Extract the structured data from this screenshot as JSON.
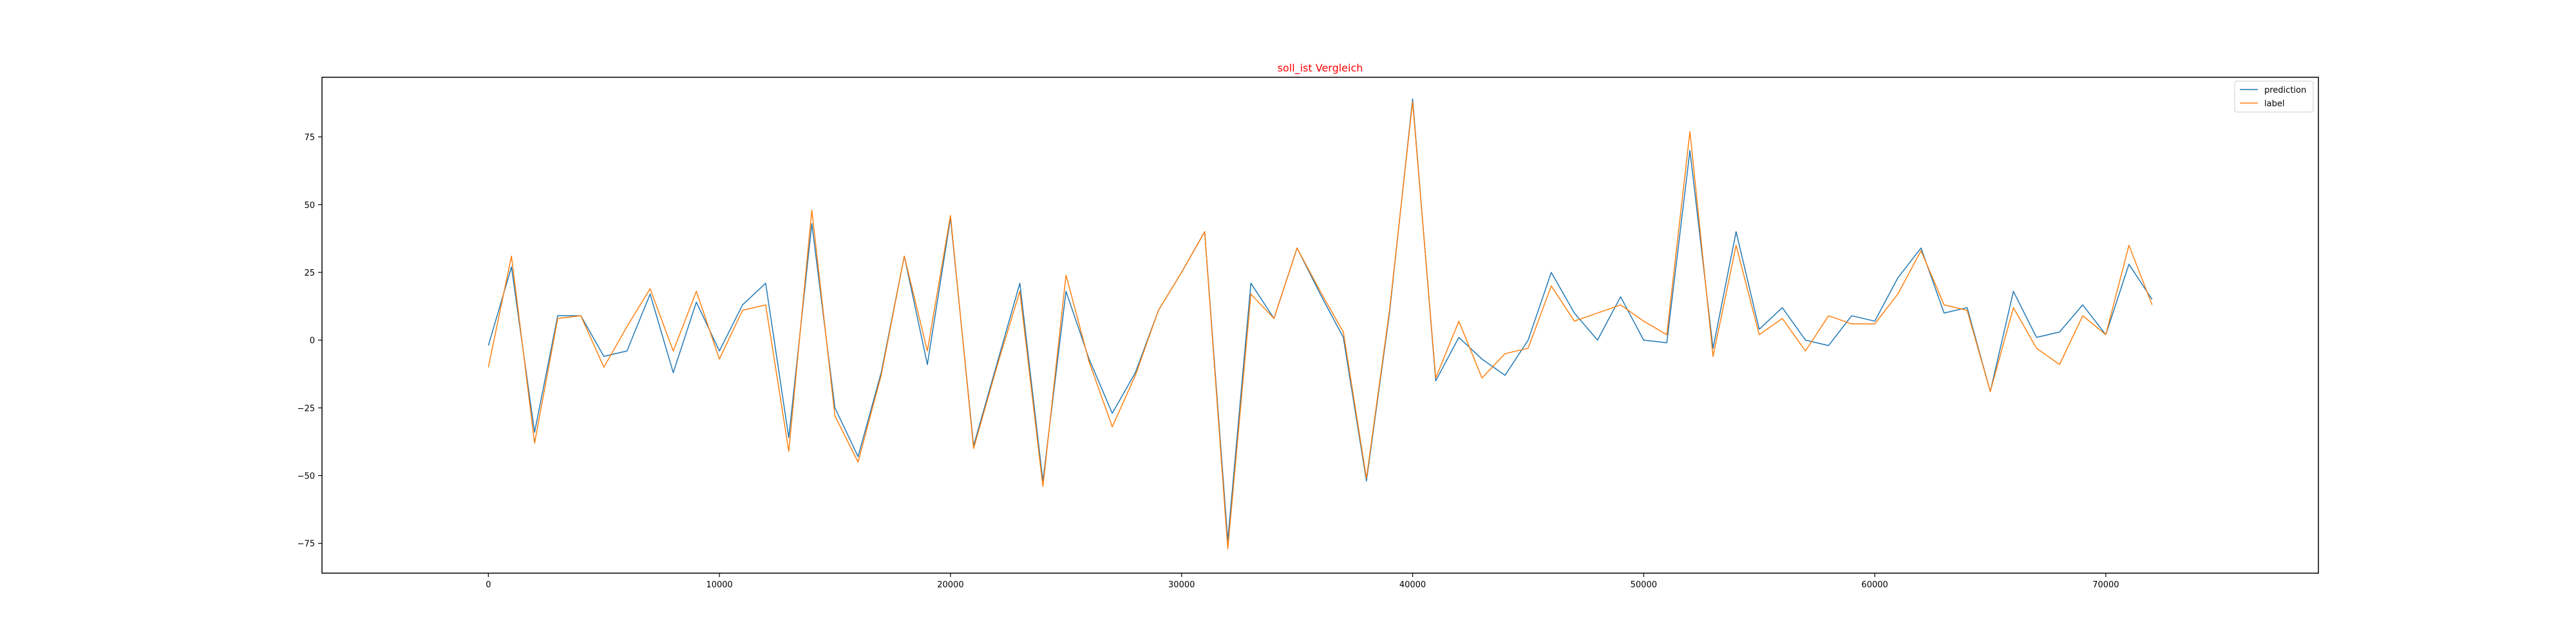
{
  "chart_data": {
    "type": "line",
    "title": "soll_ist Vergleich",
    "title_color": "#ff0000",
    "xlabel": "",
    "ylabel": "",
    "xlim": [
      -7200,
      79200
    ],
    "ylim": [
      -86,
      97
    ],
    "xticks": [
      0,
      10000,
      20000,
      30000,
      40000,
      50000,
      60000,
      70000
    ],
    "yticks": [
      -75,
      -50,
      -25,
      0,
      25,
      50,
      75
    ],
    "grid": false,
    "legend_position": "upper right",
    "x": [
      0,
      1000,
      2000,
      3000,
      4000,
      5000,
      6000,
      7000,
      8000,
      9000,
      10000,
      11000,
      12000,
      13000,
      14000,
      15000,
      16000,
      17000,
      18000,
      19000,
      20000,
      21000,
      22000,
      23000,
      24000,
      25000,
      26000,
      27000,
      28000,
      29000,
      30000,
      31000,
      32000,
      33000,
      34000,
      35000,
      36000,
      37000,
      38000,
      39000,
      40000,
      41000,
      42000,
      43000,
      44000,
      45000,
      46000,
      47000,
      48000,
      49000,
      50000,
      51000,
      52000,
      53000,
      54000,
      55000,
      56000,
      57000,
      58000,
      59000,
      60000,
      61000,
      62000,
      63000,
      64000,
      65000,
      66000,
      67000,
      68000,
      69000,
      70000,
      71000,
      72000
    ],
    "series": [
      {
        "name": "prediction",
        "color": "#1f77b4",
        "values": [
          -2,
          27,
          -34,
          9,
          9,
          -6,
          -4,
          17,
          -12,
          14,
          -4,
          13,
          21,
          -36,
          43,
          -25,
          -43,
          -12,
          31,
          -9,
          45,
          -39,
          -9,
          21,
          -52,
          18,
          -7,
          -27,
          -12,
          11,
          25,
          40,
          -74,
          21,
          8,
          34,
          17,
          1,
          -52,
          10,
          89,
          -15,
          1,
          -7,
          -13,
          0,
          25,
          10,
          0,
          16,
          0,
          -1,
          70,
          -3,
          40,
          4,
          12,
          0,
          -2,
          9,
          7,
          23,
          34,
          10,
          12,
          -19,
          18,
          1,
          3,
          13,
          2,
          28,
          15
        ]
      },
      {
        "name": "label",
        "color": "#ff7f0e",
        "values": [
          -10,
          31,
          -38,
          8,
          9,
          -10,
          5,
          19,
          -4,
          18,
          -7,
          11,
          13,
          -41,
          48,
          -28,
          -45,
          -13,
          31,
          -4,
          46,
          -40,
          -10,
          18,
          -54,
          24,
          -8,
          -32,
          -13,
          11,
          25,
          40,
          -77,
          17,
          8,
          34,
          18,
          3,
          -51,
          11,
          88,
          -14,
          7,
          -14,
          -5,
          -3,
          20,
          7,
          10,
          13,
          7,
          2,
          77,
          -6,
          35,
          2,
          8,
          -4,
          9,
          6,
          6,
          17,
          33,
          13,
          11,
          -19,
          12,
          -3,
          -9,
          9,
          2,
          35,
          13
        ]
      }
    ]
  }
}
